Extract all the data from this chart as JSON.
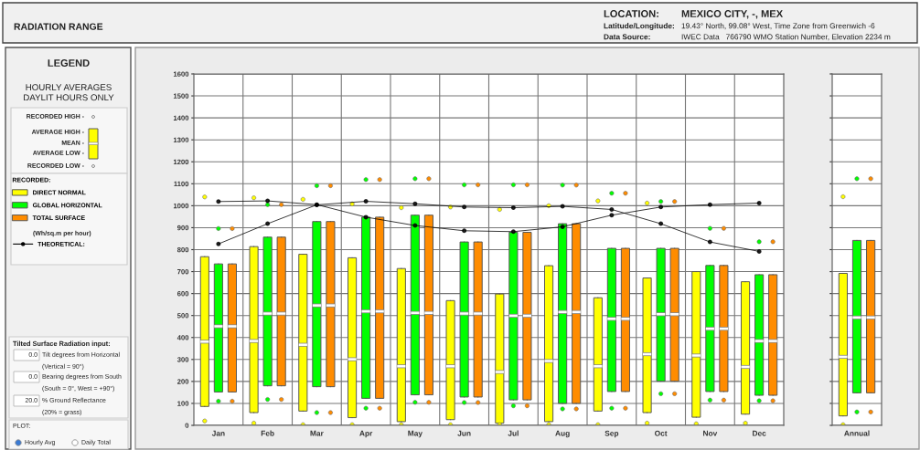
{
  "chart_data": [
    {
      "type": "box",
      "annotations": [
        "RADIATION RANGE",
        "LOCATION:",
        "MEXICO CITY, -, MEX",
        "Latitude/Longitude:",
        "19.43° North, 99.08° West, Time Zone from Greenwich -6",
        "Data Source:",
        "IWEC Data   766790 WMO Station Number, Elevation 2234 m",
        "LEGEND",
        "HOURLY AVERAGES\nDAYLIT HOURS ONLY",
        "RECORDED HIGH -",
        "AVERAGE HIGH -",
        "MEAN -",
        "AVERAGE LOW -",
        "RECORDED LOW -",
        "(Wh/sq.m per hour)",
        "Tilted Surface Radiation input:",
        "0.0",
        "Tilt degrees from Horizontal",
        "(Vertical = 90°)",
        "0.0",
        "Bearing degrees from South",
        "(South = 0°, West = +90°)",
        "20.0",
        "% Ground Reflectance",
        "(20% = grass)",
        "PLOT:",
        "Hourly Avg",
        "Daily Total"
      ],
      "categories": [
        "Jan",
        "Feb",
        "Mar",
        "Apr",
        "May",
        "Jun",
        "Jul",
        "Aug",
        "Sep",
        "Oct",
        "Nov",
        "Dec"
      ],
      "ylim": [
        0,
        1600
      ],
      "yticks": [
        0,
        100,
        200,
        300,
        400,
        500,
        600,
        700,
        800,
        900,
        1000,
        1100,
        1200,
        1300,
        1400,
        1500,
        1600
      ],
      "grid": true,
      "legend": "left",
      "legend_title": "RECORDED:",
      "marker": "circle",
      "series": [
        {
          "name": "DIRECT NORMAL",
          "color": "#ffff00",
          "boxes": [
            {
              "low": 86,
              "q1": 86,
              "median": 381,
              "q3": 768,
              "high": 768,
              "outliers": [
                1040,
                20
              ]
            },
            {
              "low": 58,
              "q1": 58,
              "median": 384,
              "q3": 814,
              "high": 814,
              "outliers": [
                1036,
                10
              ]
            },
            {
              "low": 65,
              "q1": 65,
              "median": 367,
              "q3": 779,
              "high": 779,
              "outliers": [
                1029,
                3
              ]
            },
            {
              "low": 35,
              "q1": 35,
              "median": 301,
              "q3": 763,
              "high": 763,
              "outliers": [
                1008,
                3
              ]
            },
            {
              "low": 17,
              "q1": 17,
              "median": 269,
              "q3": 714,
              "high": 714,
              "outliers": [
                991,
                3
              ]
            },
            {
              "low": 26,
              "q1": 26,
              "median": 269,
              "q3": 568,
              "high": 568,
              "outliers": [
                994,
                3
              ]
            },
            {
              "low": 10,
              "q1": 10,
              "median": 243,
              "q3": 598,
              "high": 598,
              "outliers": [
                983,
                3
              ]
            },
            {
              "low": 17,
              "q1": 17,
              "median": 293,
              "q3": 727,
              "high": 727,
              "outliers": [
                1000,
                3
              ]
            },
            {
              "low": 65,
              "q1": 65,
              "median": 269,
              "q3": 581,
              "high": 581,
              "outliers": [
                1022,
                3
              ]
            },
            {
              "low": 58,
              "q1": 58,
              "median": 324,
              "q3": 671,
              "high": 671,
              "outliers": [
                1012,
                10
              ]
            },
            {
              "low": 37,
              "q1": 37,
              "median": 318,
              "q3": 700,
              "high": 700,
              "outliers": [
                7
              ]
            },
            {
              "low": 51,
              "q1": 51,
              "median": 266,
              "q3": 654,
              "high": 654,
              "outliers": [
                10
              ]
            }
          ]
        },
        {
          "name": "GLOBAL HORIZONTAL",
          "color": "#00ff00",
          "boxes": [
            {
              "low": 152,
              "q1": 152,
              "median": 451,
              "q3": 735,
              "high": 735,
              "outliers": [
                896,
                110
              ]
            },
            {
              "low": 180,
              "q1": 180,
              "median": 509,
              "q3": 857,
              "high": 857,
              "outliers": [
                1005,
                118
              ]
            },
            {
              "low": 176,
              "q1": 176,
              "median": 546,
              "q3": 928,
              "high": 928,
              "outliers": [
                1091,
                58
              ]
            },
            {
              "low": 123,
              "q1": 123,
              "median": 519,
              "q3": 948,
              "high": 948,
              "outliers": [
                1119,
                78
              ]
            },
            {
              "low": 139,
              "q1": 139,
              "median": 512,
              "q3": 957,
              "high": 957,
              "outliers": [
                1123,
                105
              ]
            },
            {
              "low": 129,
              "q1": 129,
              "median": 509,
              "q3": 835,
              "high": 835,
              "outliers": [
                1095,
                104
              ]
            },
            {
              "low": 116,
              "q1": 116,
              "median": 499,
              "q3": 879,
              "high": 879,
              "outliers": [
                1095,
                89
              ]
            },
            {
              "low": 100,
              "q1": 100,
              "median": 516,
              "q3": 918,
              "high": 918,
              "outliers": [
                1094,
                75
              ]
            },
            {
              "low": 154,
              "q1": 154,
              "median": 485,
              "q3": 806,
              "high": 806,
              "outliers": [
                1057,
                78
              ]
            },
            {
              "low": 201,
              "q1": 201,
              "median": 506,
              "q3": 806,
              "high": 806,
              "outliers": [
                1019,
                144
              ]
            },
            {
              "low": 154,
              "q1": 154,
              "median": 440,
              "q3": 728,
              "high": 728,
              "outliers": [
                897,
                115
              ]
            },
            {
              "low": 137,
              "q1": 137,
              "median": 384,
              "q3": 686,
              "high": 686,
              "outliers": [
                836,
                112
              ]
            }
          ]
        },
        {
          "name": "TOTAL SURFACE",
          "color": "#ff8c00",
          "boxes": [
            {
              "low": 152,
              "q1": 152,
              "median": 451,
              "q3": 735,
              "high": 735,
              "outliers": [
                896,
                110
              ]
            },
            {
              "low": 180,
              "q1": 180,
              "median": 509,
              "q3": 857,
              "high": 857,
              "outliers": [
                1005,
                118
              ]
            },
            {
              "low": 176,
              "q1": 176,
              "median": 546,
              "q3": 928,
              "high": 928,
              "outliers": [
                1091,
                58
              ]
            },
            {
              "low": 123,
              "q1": 123,
              "median": 519,
              "q3": 948,
              "high": 948,
              "outliers": [
                1119,
                78
              ]
            },
            {
              "low": 139,
              "q1": 139,
              "median": 512,
              "q3": 957,
              "high": 957,
              "outliers": [
                1123,
                105
              ]
            },
            {
              "low": 129,
              "q1": 129,
              "median": 509,
              "q3": 835,
              "high": 835,
              "outliers": [
                1095,
                104
              ]
            },
            {
              "low": 116,
              "q1": 116,
              "median": 499,
              "q3": 879,
              "high": 879,
              "outliers": [
                1095,
                89
              ]
            },
            {
              "low": 100,
              "q1": 100,
              "median": 516,
              "q3": 918,
              "high": 918,
              "outliers": [
                1094,
                75
              ]
            },
            {
              "low": 154,
              "q1": 154,
              "median": 485,
              "q3": 806,
              "high": 806,
              "outliers": [
                1057,
                78
              ]
            },
            {
              "low": 201,
              "q1": 201,
              "median": 506,
              "q3": 806,
              "high": 806,
              "outliers": [
                1019,
                144
              ]
            },
            {
              "low": 154,
              "q1": 154,
              "median": 440,
              "q3": 728,
              "high": 728,
              "outliers": [
                897,
                115
              ]
            },
            {
              "low": 137,
              "q1": 137,
              "median": 384,
              "q3": 686,
              "high": 686,
              "outliers": [
                836,
                112
              ]
            }
          ]
        },
        {
          "name": "THEORETICAL:",
          "type": "line",
          "color": "#000000",
          "values": [
            1019,
            1022,
            1005,
            948,
            910,
            886,
            882,
            904,
            957,
            994,
            1005,
            1012
          ]
        },
        {
          "type": "line",
          "color": "#000000",
          "values": [
            826,
            918,
            1004,
            1020,
            1009,
            994,
            991,
            997,
            983,
            918,
            835,
            792
          ]
        }
      ]
    },
    {
      "type": "box",
      "categories": [
        "Annual"
      ],
      "ylim": [
        0,
        1600
      ],
      "yticks": [
        0,
        100,
        200,
        300,
        400,
        500,
        600,
        700,
        800,
        900,
        1000,
        1100,
        1200,
        1300,
        1400,
        1500,
        1600
      ],
      "grid": true,
      "tick_labels": "x",
      "marker": "circle",
      "series": [
        {
          "color": "#ffff00",
          "boxes": [
            {
              "low": 43,
              "q1": 43,
              "median": 312,
              "q3": 692,
              "high": 692,
              "outliers": [
                1041,
                3
              ]
            }
          ]
        },
        {
          "color": "#00ff00",
          "boxes": [
            {
              "low": 148,
              "q1": 148,
              "median": 491,
              "q3": 842,
              "high": 842,
              "outliers": [
                1123,
                61
              ]
            }
          ]
        },
        {
          "color": "#ff8c00",
          "boxes": [
            {
              "low": 148,
              "q1": 148,
              "median": 491,
              "q3": 842,
              "high": 842,
              "outliers": [
                1123,
                61
              ]
            }
          ]
        }
      ]
    }
  ]
}
